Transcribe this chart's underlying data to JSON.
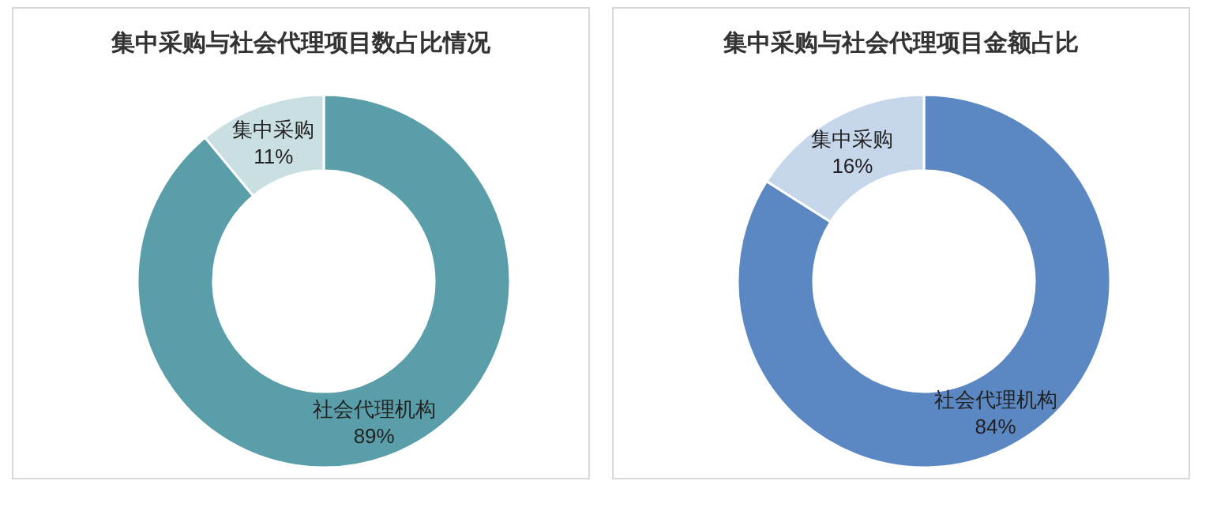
{
  "chart_data": [
    {
      "type": "donut",
      "title": "集中采购与社会代理项目数占比情况",
      "categories": [
        "社会代理机构",
        "集中采购"
      ],
      "values": [
        89,
        11
      ],
      "colors": [
        "#5a9ea9",
        "#c9dfe2"
      ],
      "value_labels": [
        "89%",
        "11%"
      ]
    },
    {
      "type": "donut",
      "title": "集中采购与社会代理项目金额占比",
      "categories": [
        "社会代理机构",
        "集中采购"
      ],
      "values": [
        84,
        16
      ],
      "colors": [
        "#5b87c2",
        "#c6d6eb"
      ],
      "value_labels": [
        "84%",
        "16%"
      ]
    }
  ]
}
